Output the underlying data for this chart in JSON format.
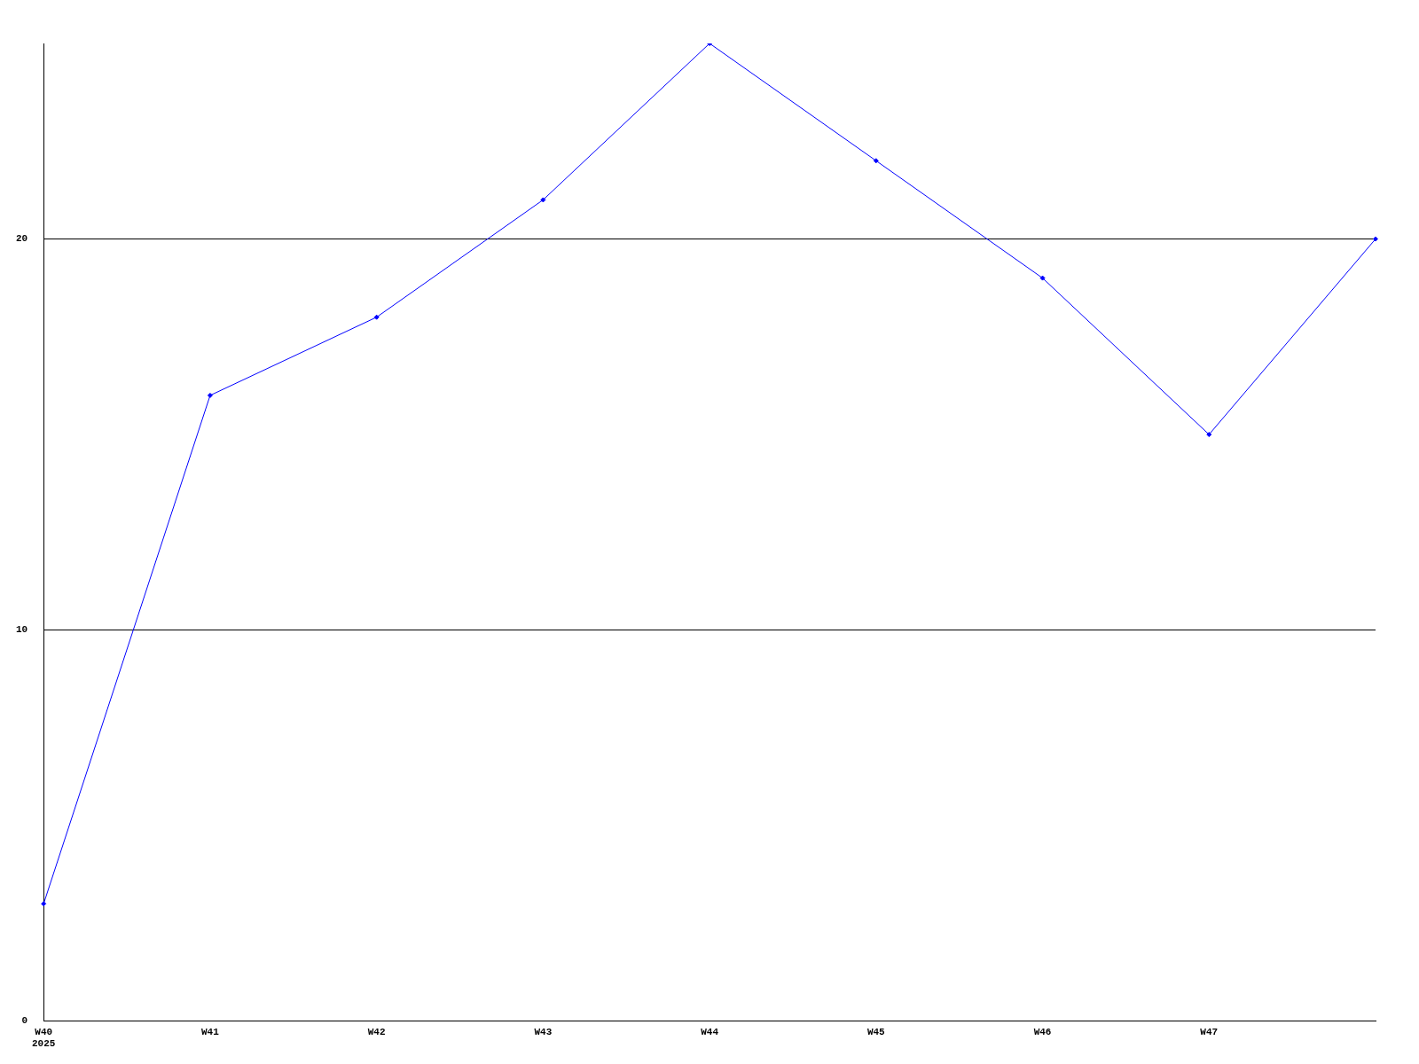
{
  "chart_data": {
    "type": "line",
    "categories": [
      "W40\n2025",
      "W41",
      "W42",
      "W43",
      "W44",
      "W45",
      "W46",
      "W47",
      null
    ],
    "series": [
      {
        "color": "#0000ff",
        "values": [
          3,
          16,
          18,
          21,
          25,
          22,
          19,
          15,
          20
        ]
      }
    ],
    "ylim": [
      0,
      25
    ],
    "yticks": [
      0,
      10,
      20
    ],
    "grid": "y",
    "legend": false,
    "marker": "diamond"
  }
}
